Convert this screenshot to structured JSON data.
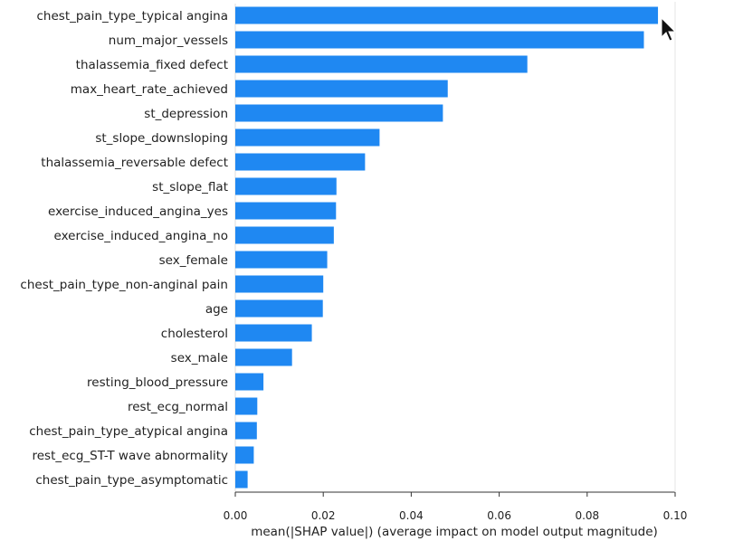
{
  "chart_data": {
    "type": "bar",
    "orientation": "horizontal",
    "title": "",
    "xlabel": "mean(|SHAP value|) (average impact on model output magnitude)",
    "ylabel": "",
    "xlim": [
      0,
      0.1
    ],
    "xticks": [
      0.0,
      0.02,
      0.04,
      0.06,
      0.08,
      0.1
    ],
    "xtick_labels": [
      "0.00",
      "0.02",
      "0.04",
      "0.06",
      "0.08",
      "0.10"
    ],
    "grid": false,
    "legend": "none",
    "bar_color": "#1f88f2",
    "categories": [
      "chest_pain_type_typical angina",
      "num_major_vessels",
      "thalassemia_fixed defect",
      "max_heart_rate_achieved",
      "st_depression",
      "st_slope_downsloping",
      "thalassemia_reversable defect",
      "st_slope_flat",
      "exercise_induced_angina_yes",
      "exercise_induced_angina_no",
      "sex_female",
      "chest_pain_type_non-anginal pain",
      "age",
      "cholesterol",
      "sex_male",
      "resting_blood_pressure",
      "rest_ecg_normal",
      "chest_pain_type_atypical angina",
      "rest_ecg_ST-T wave abnormality",
      "chest_pain_type_asymptomatic"
    ],
    "values": [
      0.0961,
      0.0929,
      0.0664,
      0.0483,
      0.0472,
      0.0328,
      0.0295,
      0.023,
      0.0229,
      0.0224,
      0.0209,
      0.02,
      0.0199,
      0.0174,
      0.0129,
      0.0064,
      0.005,
      0.0049,
      0.0042,
      0.0028
    ]
  }
}
